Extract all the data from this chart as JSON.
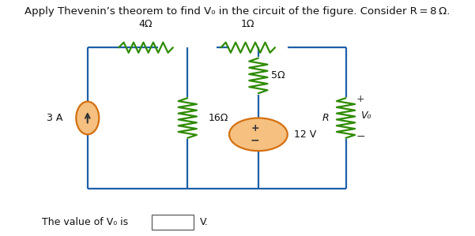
{
  "title": "Apply Thevenin’s theorem to find V₀ in the circuit of the figure. Consider R = 8 Ω.",
  "bottom_text": "The value of V₀ is",
  "unit_text": "V.",
  "bg_color": "#ffffff",
  "wire_color": "#1e5fa8",
  "green": "#2e8b00",
  "orange_fill": "#f5c080",
  "orange_stroke": "#d47010",
  "xl": 0.14,
  "xm1": 0.38,
  "xm2": 0.55,
  "xr": 0.76,
  "yt": 0.8,
  "yb": 0.2,
  "labels": {
    "R4": "4Ω",
    "R1": "1Ω",
    "R16": "16Ω",
    "R5": "5Ω",
    "R": "R",
    "Vo": "V₀",
    "I3A": "3 A",
    "V12": "12 V"
  }
}
